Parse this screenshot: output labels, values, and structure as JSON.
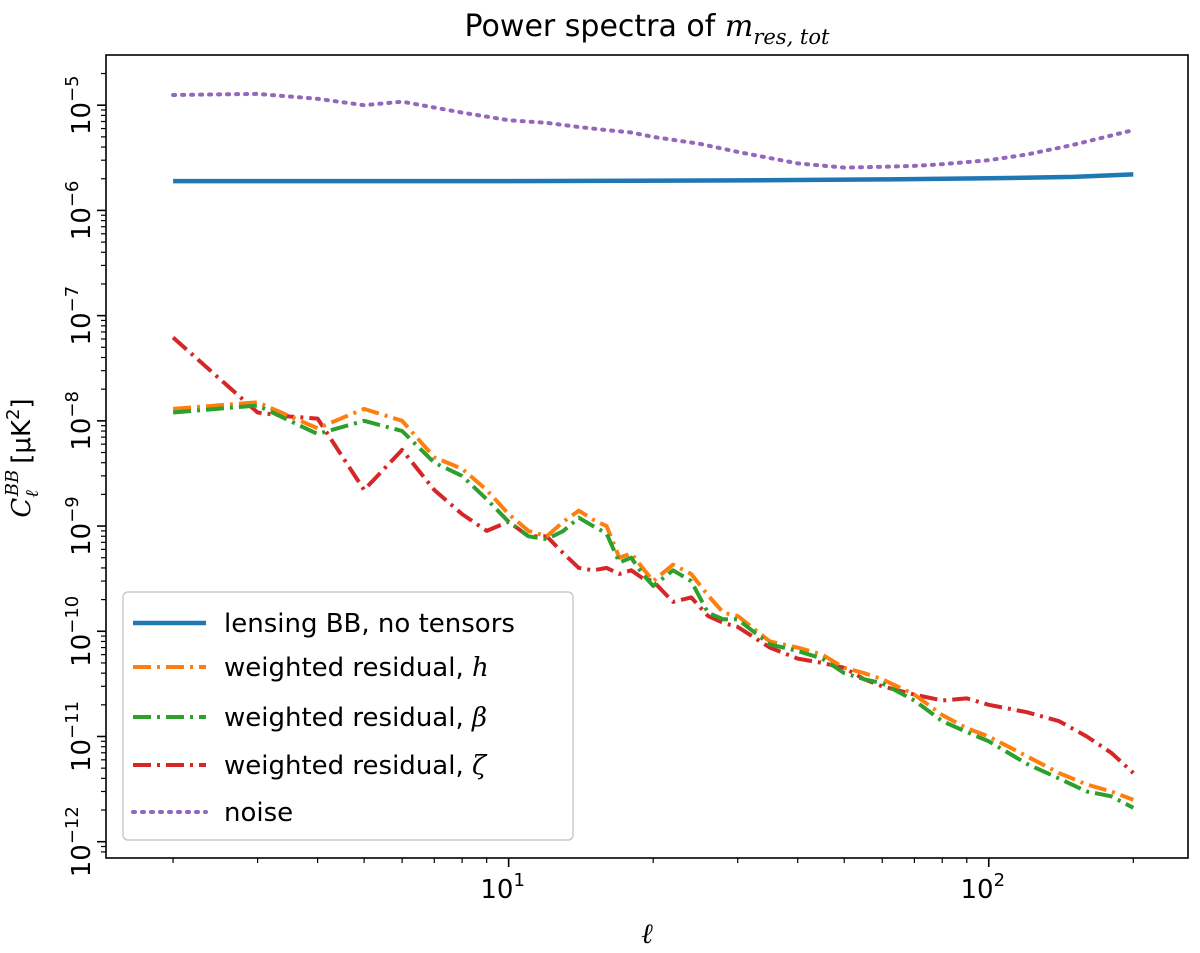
{
  "chart_data": {
    "type": "line",
    "title_prefix": "Power spectra of ",
    "title_math": "m",
    "title_sub": "res, tot",
    "xlabel": "ℓ",
    "ylabel_symbol": "C",
    "ylabel_sub": "ℓ",
    "ylabel_sup": "BB",
    "ylabel_units": "[μK",
    "ylabel_units_sup": "2",
    "ylabel_units_close": "]",
    "xscale": "log",
    "yscale": "log",
    "xlim": [
      1.45,
      260
    ],
    "ylim": [
      7e-13,
      3e-05
    ],
    "x_ticks": [
      {
        "value": 10,
        "base": "10",
        "exp": "1"
      },
      {
        "value": 100,
        "base": "10",
        "exp": "2"
      }
    ],
    "y_ticks": [
      {
        "value": 1e-12,
        "base": "10",
        "exp": "−12"
      },
      {
        "value": 1e-11,
        "base": "10",
        "exp": "−11"
      },
      {
        "value": 1e-10,
        "base": "10",
        "exp": "−10"
      },
      {
        "value": 1e-09,
        "base": "10",
        "exp": "−9"
      },
      {
        "value": 1e-08,
        "base": "10",
        "exp": "−8"
      },
      {
        "value": 1e-07,
        "base": "10",
        "exp": "−7"
      },
      {
        "value": 1e-06,
        "base": "10",
        "exp": "−6"
      },
      {
        "value": 1e-05,
        "base": "10",
        "exp": "−5"
      }
    ],
    "legend_position": "lower-left",
    "series": [
      {
        "key": "lensing",
        "name": "lensing BB, no tensors",
        "name_math": "",
        "color": "#1f77b4",
        "style": "solid",
        "x": [
          2,
          10,
          30,
          60,
          100,
          150,
          200
        ],
        "y": [
          1.9e-06,
          1.9e-06,
          1.93e-06,
          1.97e-06,
          2.02e-06,
          2.08e-06,
          2.2e-06
        ]
      },
      {
        "key": "h",
        "name": "weighted residual, ",
        "name_math": "h",
        "color": "#ff7f0e",
        "style": "dashdot",
        "x": [
          2,
          3,
          4,
          5,
          6,
          7,
          8,
          9,
          10,
          11,
          12,
          13,
          14,
          15,
          16,
          17,
          18,
          19,
          20,
          22,
          24,
          26,
          28,
          30,
          35,
          40,
          45,
          50,
          55,
          60,
          70,
          80,
          90,
          100,
          120,
          140,
          160,
          180,
          200
        ],
        "y": [
          1.3e-08,
          1.5e-08,
          8.5e-09,
          1.3e-08,
          1e-08,
          4.5e-09,
          3.5e-09,
          2.2e-09,
          1.3e-09,
          9e-10,
          8e-10,
          1.1e-09,
          1.4e-09,
          1.15e-09,
          1e-09,
          5e-10,
          5.5e-10,
          4e-10,
          3e-10,
          4.3e-10,
          3.5e-10,
          2.2e-10,
          1.5e-10,
          1.4e-10,
          8e-11,
          7e-11,
          6e-11,
          4.5e-11,
          4e-11,
          3.5e-11,
          2.5e-11,
          1.6e-11,
          1.2e-11,
          1e-11,
          6.5e-12,
          4.5e-12,
          3.5e-12,
          3e-12,
          2.5e-12
        ]
      },
      {
        "key": "beta",
        "name": "weighted residual, ",
        "name_math": "β",
        "color": "#2ca02c",
        "style": "dashdot",
        "x": [
          2,
          3,
          4,
          5,
          6,
          7,
          8,
          9,
          10,
          11,
          12,
          13,
          14,
          15,
          16,
          17,
          18,
          19,
          20,
          22,
          24,
          26,
          28,
          30,
          35,
          40,
          45,
          50,
          55,
          60,
          70,
          80,
          90,
          100,
          120,
          140,
          160,
          180,
          200
        ],
        "y": [
          1.2e-08,
          1.4e-08,
          7.5e-09,
          1e-08,
          8e-09,
          4e-09,
          3e-09,
          1.8e-09,
          1.1e-09,
          8e-10,
          7.5e-10,
          9e-10,
          1.2e-09,
          1e-09,
          8.5e-10,
          4.5e-10,
          5e-10,
          3.5e-10,
          2.7e-10,
          3.8e-10,
          3e-10,
          1.5e-10,
          1.3e-10,
          1.3e-10,
          7.5e-11,
          6.5e-11,
          5.5e-11,
          4e-11,
          3.5e-11,
          3.2e-11,
          2.2e-11,
          1.4e-11,
          1.1e-11,
          9e-12,
          5.5e-12,
          4e-12,
          3e-12,
          2.7e-12,
          2.1e-12
        ]
      },
      {
        "key": "zeta",
        "name": "weighted residual, ",
        "name_math": "ζ",
        "color": "#d62728",
        "style": "dashdot",
        "x": [
          2,
          3,
          3.5,
          4,
          5,
          6,
          7,
          8,
          9,
          10,
          11,
          12,
          13,
          14,
          15,
          16,
          17,
          18,
          19,
          20,
          22,
          24,
          26,
          28,
          30,
          35,
          40,
          45,
          50,
          55,
          60,
          70,
          80,
          90,
          100,
          120,
          140,
          160,
          180,
          200
        ],
        "y": [
          6.2e-08,
          1.2e-08,
          1.1e-08,
          1.05e-08,
          2.2e-09,
          5.3e-09,
          2.2e-09,
          1.3e-09,
          9e-10,
          1.1e-09,
          8e-10,
          8e-10,
          5.5e-10,
          4e-10,
          3.8e-10,
          4e-10,
          3.5e-10,
          3.8e-10,
          3.2e-10,
          3e-10,
          1.9e-10,
          2.1e-10,
          1.4e-10,
          1.2e-10,
          1.1e-10,
          7e-11,
          5.5e-11,
          5e-11,
          4.5e-11,
          3.5e-11,
          3e-11,
          2.5e-11,
          2.2e-11,
          2.3e-11,
          2e-11,
          1.7e-11,
          1.4e-11,
          1e-11,
          7e-12,
          4.5e-12
        ]
      },
      {
        "key": "noise",
        "name": "noise",
        "name_math": "",
        "color": "#9467bd",
        "style": "dotted",
        "x": [
          2,
          3,
          4,
          5,
          6,
          7,
          8,
          10,
          12,
          14,
          16,
          18,
          20,
          25,
          30,
          40,
          50,
          60,
          70,
          80,
          100,
          120,
          150,
          200
        ],
        "y": [
          1.25e-05,
          1.28e-05,
          1.15e-05,
          1e-05,
          1.08e-05,
          9.5e-06,
          8.5e-06,
          7.2e-06,
          6.8e-06,
          6.2e-06,
          5.8e-06,
          5.5e-06,
          5e-06,
          4.3e-06,
          3.6e-06,
          2.8e-06,
          2.55e-06,
          2.6e-06,
          2.65e-06,
          2.75e-06,
          3e-06,
          3.4e-06,
          4.2e-06,
          5.8e-06
        ]
      }
    ]
  }
}
